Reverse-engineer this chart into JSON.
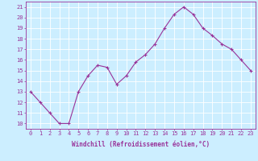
{
  "x": [
    0,
    1,
    2,
    3,
    4,
    5,
    6,
    7,
    8,
    9,
    10,
    11,
    12,
    13,
    14,
    15,
    16,
    17,
    18,
    19,
    20,
    21,
    22,
    23
  ],
  "y": [
    13,
    12,
    11,
    10,
    10,
    13,
    14.5,
    15.5,
    15.3,
    13.7,
    14.5,
    15.8,
    16.5,
    17.5,
    19,
    20.3,
    21,
    20.3,
    19,
    18.3,
    17.5,
    17,
    16,
    15
  ],
  "line_color": "#993399",
  "marker": "+",
  "marker_size": 3,
  "linewidth": 0.8,
  "xlabel": "Windchill (Refroidissement éolien,°C)",
  "xlabel_fontsize": 5.5,
  "ylabel_ticks": [
    10,
    11,
    12,
    13,
    14,
    15,
    16,
    17,
    18,
    19,
    20,
    21
  ],
  "xtick_labels": [
    "0",
    "1",
    "2",
    "3",
    "4",
    "5",
    "6",
    "7",
    "8",
    "9",
    "10",
    "11",
    "12",
    "13",
    "14",
    "15",
    "16",
    "17",
    "18",
    "19",
    "20",
    "21",
    "22",
    "23"
  ],
  "xlim": [
    -0.5,
    23.5
  ],
  "ylim": [
    9.5,
    21.5
  ],
  "background_color": "#cceeff",
  "grid_color": "#ffffff",
  "tick_fontsize": 5,
  "label_color": "#993399"
}
